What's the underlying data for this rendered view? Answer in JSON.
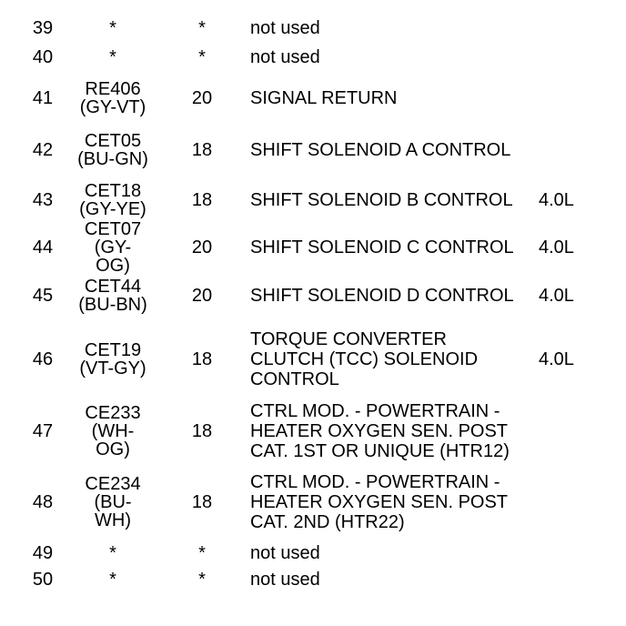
{
  "document": {
    "kind": "connector-pinout-table",
    "text_color": "#000000",
    "background_color": "#ffffff"
  },
  "table": {
    "columns": [
      "pin",
      "circuit",
      "gauge",
      "description",
      "engine"
    ],
    "not_used_marker": "*",
    "rows": [
      {
        "pin": "39",
        "circuit": "*",
        "gauge": "*",
        "description": "not used",
        "engine": ""
      },
      {
        "pin": "40",
        "circuit": "*",
        "gauge": "*",
        "description": "not used",
        "engine": ""
      },
      {
        "pin": "41",
        "circuit": "RE406\n(GY-VT)",
        "gauge": "20",
        "description": "SIGNAL RETURN",
        "engine": ""
      },
      {
        "pin": "42",
        "circuit": "CET05\n(BU-GN)",
        "gauge": "18",
        "description": "SHIFT SOLENOID A CONTROL",
        "engine": ""
      },
      {
        "pin": "43",
        "circuit": "CET18\n(GY-YE)",
        "gauge": "18",
        "description": "SHIFT SOLENOID B CONTROL",
        "engine": "4.0L"
      },
      {
        "pin": "44",
        "circuit": "CET07\n(GY-OG)",
        "gauge": "20",
        "description": "SHIFT SOLENOID C CONTROL",
        "engine": "4.0L"
      },
      {
        "pin": "45",
        "circuit": "CET44\n(BU-BN)",
        "gauge": "20",
        "description": "SHIFT SOLENOID D CONTROL",
        "engine": "4.0L"
      },
      {
        "pin": "46",
        "circuit": "CET19\n(VT-GY)",
        "gauge": "18",
        "description": "TORQUE CONVERTER\nCLUTCH (TCC) SOLENOID\nCONTROL",
        "engine": "4.0L"
      },
      {
        "pin": "47",
        "circuit": "CE233\n(WH-OG)",
        "gauge": "18",
        "description": "CTRL MOD. - POWERTRAIN -\nHEATER OXYGEN SEN. POST\nCAT. 1ST OR UNIQUE (HTR12)",
        "engine": ""
      },
      {
        "pin": "48",
        "circuit": "CE234\n(BU-WH)",
        "gauge": "18",
        "description": "CTRL MOD. - POWERTRAIN -\nHEATER OXYGEN SEN. POST\nCAT. 2ND (HTR22)",
        "engine": ""
      },
      {
        "pin": "49",
        "circuit": "*",
        "gauge": "*",
        "description": "not used",
        "engine": ""
      },
      {
        "pin": "50",
        "circuit": "*",
        "gauge": "*",
        "description": "not used",
        "engine": ""
      }
    ]
  }
}
